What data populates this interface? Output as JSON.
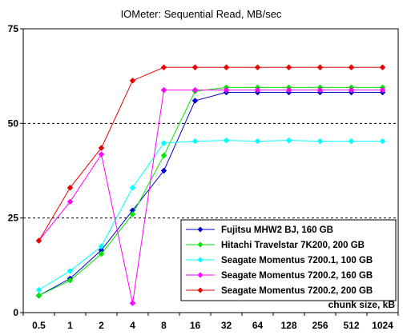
{
  "chart_data": {
    "type": "line",
    "title": "IOMeter: Sequential Read, MB/sec",
    "xlabel": "chunk size, kB",
    "ylabel": "",
    "categories": [
      "0.5",
      "1",
      "2",
      "4",
      "8",
      "16",
      "32",
      "64",
      "128",
      "256",
      "512",
      "1024"
    ],
    "ylim": [
      0,
      75
    ],
    "yticks": [
      0,
      25,
      50,
      75
    ],
    "grid": "horizontal dashed at 25 and 50",
    "legend": "bottom-right",
    "series": [
      {
        "name": "Fujitsu MHW2 BJ, 160 GB",
        "color": "#0000cc",
        "values": [
          4.5,
          9.0,
          16.5,
          27.0,
          37.5,
          56.0,
          58.2,
          58.2,
          58.2,
          58.2,
          58.2,
          58.2
        ]
      },
      {
        "name": "Hitachi Travelstar 7K200, 200 GB",
        "color": "#00e600",
        "values": [
          4.5,
          8.5,
          15.5,
          26.0,
          41.5,
          58.5,
          59.5,
          59.5,
          59.5,
          59.5,
          59.5,
          59.5
        ]
      },
      {
        "name": "Seagate Momentus 7200.1, 100 GB",
        "color": "#00ffff",
        "values": [
          6.0,
          11.0,
          17.5,
          33.0,
          44.8,
          45.3,
          45.5,
          45.3,
          45.5,
          45.3,
          45.3,
          45.3
        ]
      },
      {
        "name": "Seagate Momentus 7200.2, 160 GB",
        "color": "#ff00ff",
        "values": [
          19.0,
          29.3,
          41.8,
          2.5,
          58.8,
          58.8,
          58.8,
          58.8,
          58.8,
          58.8,
          58.8,
          58.8
        ]
      },
      {
        "name": "Seagate Momentus 7200.2, 200 GB",
        "color": "#e60000",
        "values": [
          19.0,
          33.0,
          43.5,
          61.3,
          64.8,
          64.8,
          64.8,
          64.8,
          64.8,
          64.8,
          64.8,
          64.8
        ]
      }
    ]
  }
}
